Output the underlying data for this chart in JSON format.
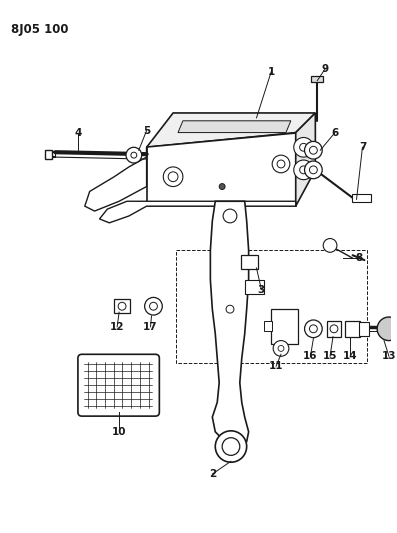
{
  "title": "8J05 100",
  "background_color": "#ffffff",
  "line_color": "#1a1a1a",
  "figsize": [
    3.97,
    5.33
  ],
  "dpi": 100
}
